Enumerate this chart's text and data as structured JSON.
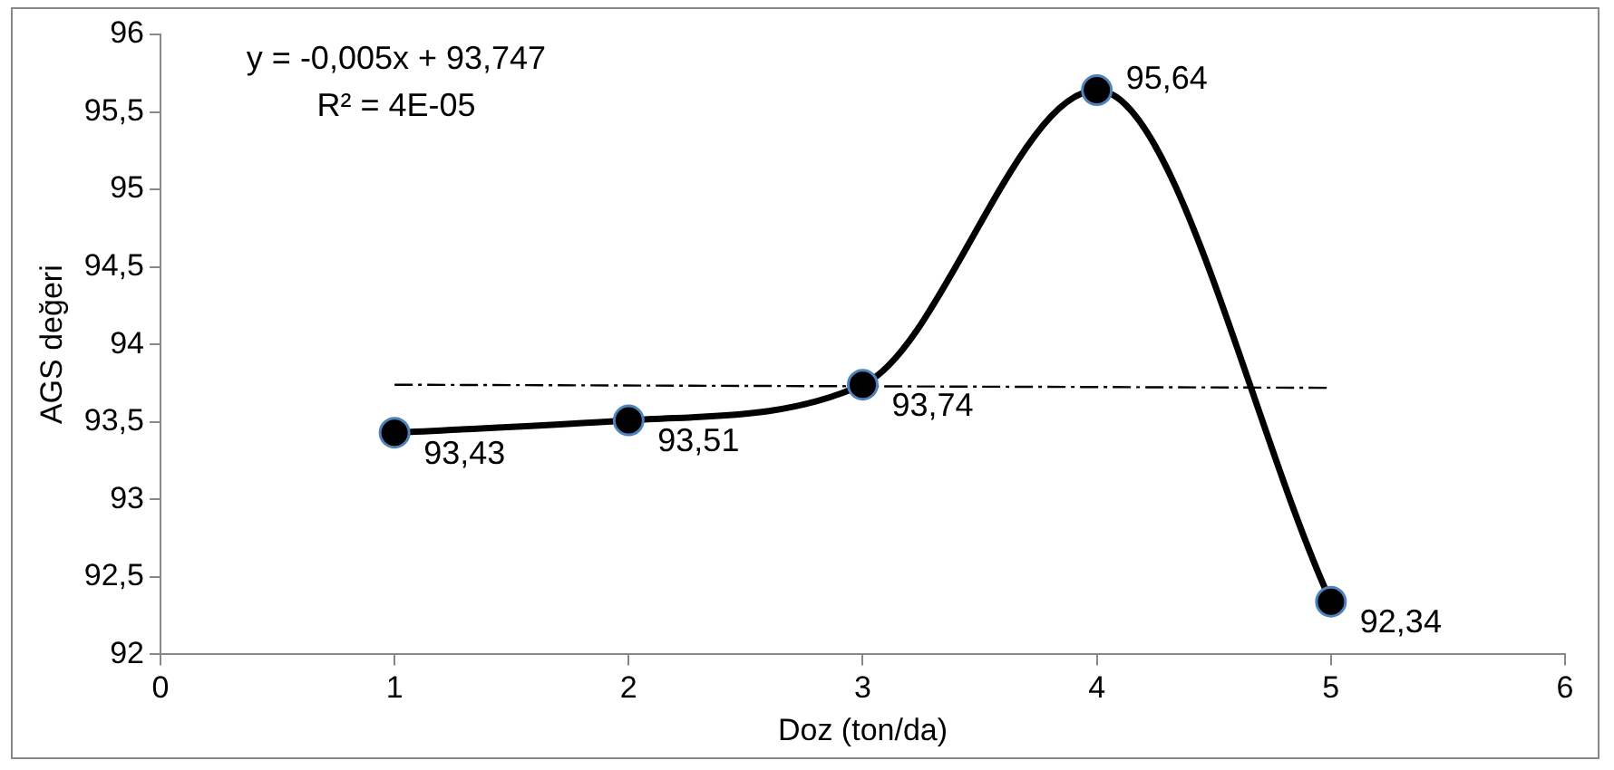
{
  "chart_data": {
    "type": "line",
    "xlabel": "Doz (ton/da)",
    "ylabel": "AGS değeri",
    "x": [
      1,
      2,
      3,
      4,
      5
    ],
    "series": [
      {
        "color": "#000000",
        "values": [
          93.43,
          93.51,
          93.74,
          95.64,
          92.34
        ],
        "value_labels": [
          "93,43",
          "93,51",
          "93,74",
          "95,64",
          "92,34"
        ],
        "marker": "circle",
        "line_style": "solid"
      },
      {
        "type": "line",
        "color": "#000000",
        "x": [
          1,
          5
        ],
        "values": [
          93.74,
          93.72
        ],
        "marker": "none",
        "line_style": "dashed"
      }
    ],
    "xlim": [
      0,
      6
    ],
    "xticks": [
      0,
      1,
      2,
      3,
      4,
      5,
      6
    ],
    "ylim": [
      92,
      96
    ],
    "yticks": [
      92,
      {
        "value": 92.5,
        "label": "92,5"
      },
      93,
      {
        "value": 93.5,
        "label": "93,5"
      },
      94,
      {
        "value": 94.5,
        "label": "94,5"
      },
      95,
      {
        "value": 95.5,
        "label": "95,5"
      },
      96
    ],
    "annotations": [
      "y = -0,005x + 93,747",
      "R² = 4E-05"
    ],
    "grid": false,
    "legend": false
  }
}
